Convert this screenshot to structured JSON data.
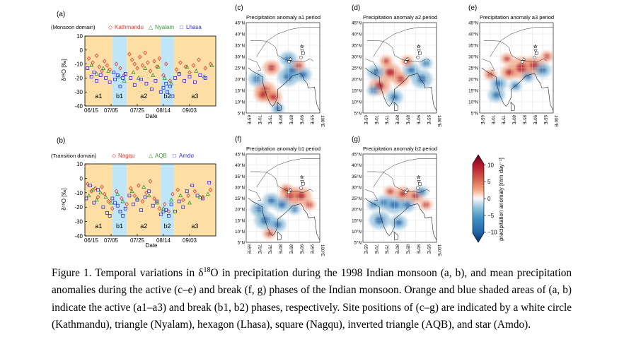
{
  "colors": {
    "active_shade": "#fddfa6",
    "break_shade": "#bfe6f6",
    "site_red": "#e8352a",
    "site_green": "#2f9a2f",
    "site_blue": "#2b2bd6",
    "cbar_max": "#67001f",
    "cbar_min": "#053061"
  },
  "timeseries": [
    {
      "panel_label": "(a)",
      "domain_label": "(Monsoon domain)",
      "legend": [
        {
          "name": "Kathmandu",
          "marker": "◇",
          "color": "#e8352a"
        },
        {
          "name": "Nyalam",
          "marker": "△",
          "color": "#2f9a2f"
        },
        {
          "name": "Lhasa",
          "marker": "□",
          "color": "#2b2bd6"
        }
      ],
      "ylabel": "δ¹⁸O [‰]",
      "xlabel": "Date"
    },
    {
      "panel_label": "(b)",
      "domain_label": "(Transition domain)",
      "legend": [
        {
          "name": "Nagqu",
          "marker": "◇",
          "color": "#e8352a"
        },
        {
          "name": "AQB",
          "marker": "△",
          "color": "#2f9a2f"
        },
        {
          "name": "Amdo",
          "marker": "□",
          "color": "#2b2bd6"
        }
      ],
      "ylabel": "δ¹⁸O [‰]",
      "xlabel": "Date"
    }
  ],
  "maps": [
    {
      "label": "(c)",
      "title": "Precipitation anomaly a1 period"
    },
    {
      "label": "(d)",
      "title": "Precipitation anomaly a2 period"
    },
    {
      "label": "(e)",
      "title": "Precipitation anomaly a3 period"
    },
    {
      "label": "(f)",
      "title": "Precipitation anomaly b1 period"
    },
    {
      "label": "(g)",
      "title": "Precipitation anomaly b2 period"
    }
  ],
  "map_axes": {
    "lat_ticks": [
      "5°N",
      "10°N",
      "15°N",
      "20°N",
      "25°N",
      "30°N",
      "35°N",
      "40°N",
      "45°N"
    ],
    "lon_ticks": [
      "65°E",
      "70°E",
      "75°E",
      "80°E",
      "85°E",
      "90°E",
      "95°E",
      "100°E"
    ]
  },
  "colorbar": {
    "label": "precipitation anomaly [mm day⁻¹]",
    "ticks": [
      "10",
      "5",
      "0",
      "−5",
      "−10"
    ],
    "range": [
      -13,
      13
    ]
  },
  "caption": {
    "lead": "Figure 1. Temporal variations in δ",
    "sup": "18",
    "rest": "O in precipitation during the 1998 Indian monsoon (a, b), and mean precipitation anomalies during the active (c–e) and break (f, g) phases of the Indian monsoon. Orange and blue shaded areas of (a, b) indicate the active (a1–a3) and break (b1, b2) phases, respectively. Site positions of (c–g) are indicated by a white circle (Kathmandu), triangle (Nyalam), hexagon (Lhasa), square (Nagqu), inverted triangle (AQB), and star (Amdo)."
  },
  "chart_data": [
    {
      "type": "scatter",
      "title": "(a) (Monsoon domain)",
      "xlabel": "Date",
      "ylabel": "δ¹⁸O [‰]",
      "ylim": [
        -40,
        10
      ],
      "yticks": [
        10,
        0,
        -10,
        -20,
        -30,
        -40
      ],
      "xlim_day": [
        0,
        100
      ],
      "xticks": [
        {
          "day": 0,
          "label": "06/15"
        },
        {
          "day": 20,
          "label": "07/05"
        },
        {
          "day": 40,
          "label": "07/25"
        },
        {
          "day": 60,
          "label": "08/14"
        },
        {
          "day": 80,
          "label": "09/03"
        }
      ],
      "periods": [
        {
          "label": "a1",
          "kind": "active",
          "start": 0,
          "end": 21
        },
        {
          "label": "b1",
          "kind": "break",
          "start": 21,
          "end": 32
        },
        {
          "label": "a2",
          "kind": "active",
          "start": 32,
          "end": 58
        },
        {
          "label": "b2",
          "kind": "break",
          "start": 58,
          "end": 68
        },
        {
          "label": "a3",
          "kind": "active",
          "start": 68,
          "end": 100
        }
      ],
      "series": [
        {
          "name": "Kathmandu",
          "marker": "diamond",
          "color": "#e8352a",
          "x": [
            3,
            6,
            9,
            11,
            13,
            15,
            17,
            19,
            24,
            27,
            30,
            34,
            36,
            38,
            40,
            42,
            44,
            46,
            48,
            50,
            53,
            55,
            57,
            60,
            62,
            65,
            70,
            73,
            77,
            80,
            83,
            87,
            92,
            96
          ],
          "y": [
            -6,
            -9,
            -4,
            -12,
            -15,
            -8,
            -11,
            -14,
            -10,
            -13,
            -18,
            -3,
            -7,
            -10,
            -13,
            -5,
            -11,
            -2,
            -9,
            -15,
            -8,
            -12,
            -6,
            -18,
            -10,
            -22,
            -14,
            -9,
            -12,
            -16,
            -11,
            -7,
            -13,
            -10
          ]
        },
        {
          "name": "Nyalam",
          "marker": "triangle",
          "color": "#2f9a2f",
          "x": [
            5,
            9,
            14,
            18,
            26,
            30,
            37,
            41,
            46,
            52,
            56,
            61,
            66,
            72,
            78,
            85,
            91,
            97
          ],
          "y": [
            -11,
            -17,
            -13,
            -15,
            -19,
            -22,
            -16,
            -20,
            -13,
            -18,
            -12,
            -20,
            -24,
            -17,
            -12,
            -15,
            -19,
            -11
          ]
        },
        {
          "name": "Lhasa",
          "marker": "square",
          "color": "#2b2bd6",
          "x": [
            2,
            5,
            7,
            9,
            12,
            16,
            19,
            22,
            23,
            25,
            27,
            29,
            31,
            35,
            38,
            43,
            47,
            51,
            54,
            58,
            60,
            62,
            63,
            65,
            67,
            69,
            72,
            76,
            80,
            84,
            88,
            92
          ],
          "y": [
            -13,
            -19,
            -16,
            -22,
            -18,
            -20,
            -23,
            -16,
            -21,
            -18,
            -26,
            -20,
            -17,
            -20,
            -25,
            -21,
            -24,
            -28,
            -22,
            -30,
            -27,
            -24,
            -30,
            -26,
            -33,
            -20,
            -17,
            -22,
            -19,
            -23,
            -18,
            -20
          ]
        }
      ]
    },
    {
      "type": "scatter",
      "title": "(b) (Transition domain)",
      "xlabel": "Date",
      "ylabel": "δ¹⁸O [‰]",
      "ylim": [
        -40,
        10
      ],
      "yticks": [
        10,
        0,
        -10,
        -20,
        -30,
        -40
      ],
      "xlim_day": [
        0,
        100
      ],
      "xticks": [
        {
          "day": 0,
          "label": "06/15"
        },
        {
          "day": 20,
          "label": "07/05"
        },
        {
          "day": 40,
          "label": "07/25"
        },
        {
          "day": 60,
          "label": "08/14"
        },
        {
          "day": 80,
          "label": "09/03"
        }
      ],
      "periods": [
        {
          "label": "a1",
          "kind": "active",
          "start": 0,
          "end": 21
        },
        {
          "label": "b1",
          "kind": "break",
          "start": 21,
          "end": 32
        },
        {
          "label": "a2",
          "kind": "active",
          "start": 32,
          "end": 58
        },
        {
          "label": "b2",
          "kind": "break",
          "start": 58,
          "end": 68
        },
        {
          "label": "a3",
          "kind": "active",
          "start": 68,
          "end": 100
        }
      ],
      "series": [
        {
          "name": "Nagqu",
          "marker": "diamond",
          "color": "#e8352a",
          "x": [
            2,
            5,
            8,
            10,
            13,
            15,
            18,
            21,
            24,
            28,
            32,
            35,
            38,
            41,
            44,
            47,
            50,
            53,
            57,
            61,
            64,
            67,
            71,
            75,
            79,
            84,
            90,
            96
          ],
          "y": [
            -4,
            -9,
            -7,
            -13,
            -6,
            -11,
            -16,
            -21,
            -9,
            -14,
            -18,
            -7,
            -12,
            -5,
            -16,
            -10,
            -2,
            -14,
            -21,
            -18,
            -23,
            -11,
            -8,
            -15,
            -12,
            -9,
            -13,
            -8
          ]
        },
        {
          "name": "AQB",
          "marker": "triangle",
          "color": "#2f9a2f",
          "x": [
            3,
            6,
            9,
            12,
            16,
            20,
            25,
            29,
            36,
            40,
            45,
            49,
            55,
            60,
            66,
            73,
            80,
            88,
            94
          ],
          "y": [
            -12,
            -8,
            -15,
            -10,
            -13,
            -17,
            -11,
            -16,
            -9,
            -14,
            -6,
            -12,
            -17,
            -21,
            -15,
            -12,
            -17,
            -13,
            -11
          ]
        },
        {
          "name": "Amdo",
          "marker": "square",
          "color": "#2b2bd6",
          "x": [
            1,
            4,
            7,
            10,
            14,
            17,
            19,
            21,
            23,
            25,
            27,
            29,
            31,
            34,
            37,
            40,
            43,
            46,
            49,
            52,
            55,
            58,
            60,
            62,
            64,
            66,
            69,
            72,
            75,
            78,
            82,
            86,
            90,
            95
          ],
          "y": [
            -14,
            -5,
            -17,
            -8,
            -20,
            -24,
            -26,
            -14,
            -17,
            -19,
            -23,
            -26,
            -21,
            -12,
            -18,
            -15,
            -22,
            -13,
            -9,
            -19,
            -16,
            -25,
            -23,
            -22,
            -26,
            -18,
            -23,
            -16,
            -20,
            -9,
            -5,
            -12,
            -14,
            -3
          ]
        }
      ]
    }
  ]
}
